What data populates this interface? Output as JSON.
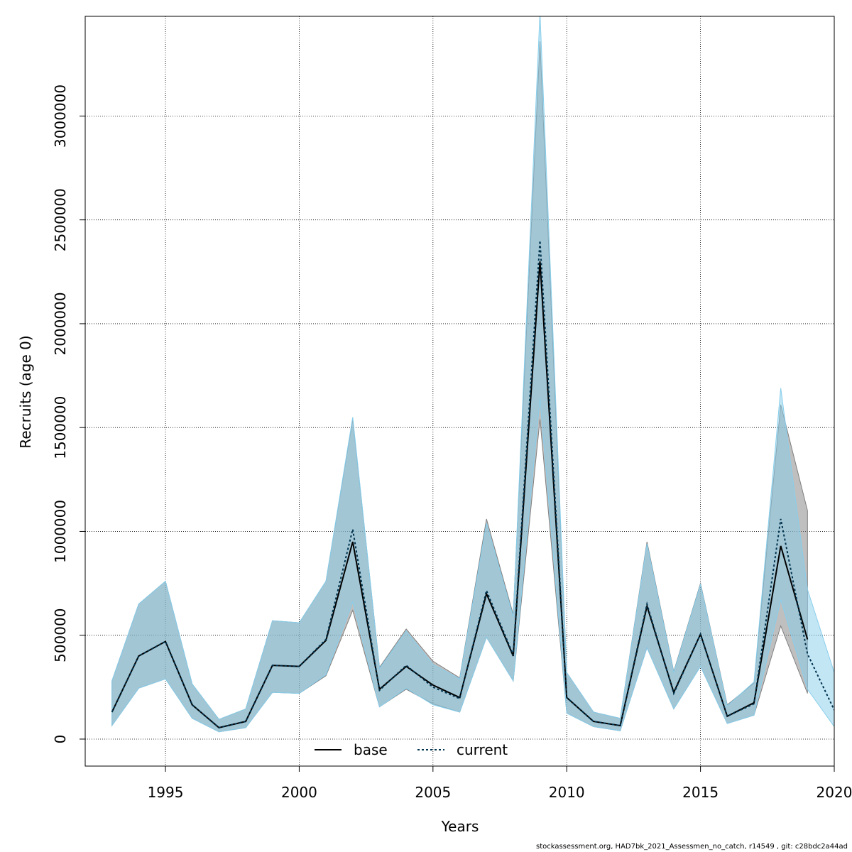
{
  "chart_data": {
    "type": "line",
    "xlabel": "Years",
    "ylabel": "Recruits (age 0)",
    "xlim": [
      1992,
      2020
    ],
    "ylim": [
      -130000,
      3480000
    ],
    "xticks": [
      1995,
      2000,
      2005,
      2010,
      2015,
      2020
    ],
    "yticks": [
      0,
      500000,
      1000000,
      1500000,
      2000000,
      2500000,
      3000000
    ],
    "grid": true,
    "legend_position": "bottom-center",
    "series": [
      {
        "name": "base",
        "color": "#000000",
        "band_color": "#808080",
        "x": [
          1993,
          1994,
          1995,
          1996,
          1997,
          1998,
          1999,
          2000,
          2001,
          2002,
          2003,
          2004,
          2005,
          2006,
          2007,
          2008,
          2009,
          2010,
          2011,
          2012,
          2013,
          2014,
          2015,
          2016,
          2017,
          2018,
          2019
        ],
        "values": [
          130000,
          400000,
          470000,
          165000,
          55000,
          85000,
          355000,
          350000,
          475000,
          950000,
          240000,
          350000,
          260000,
          200000,
          700000,
          400000,
          2300000,
          200000,
          85000,
          65000,
          640000,
          225000,
          505000,
          110000,
          175000,
          930000,
          480000
        ],
        "lower": [
          65000,
          245000,
          290000,
          100000,
          35000,
          55000,
          225000,
          220000,
          305000,
          620000,
          155000,
          240000,
          170000,
          130000,
          490000,
          280000,
          1540000,
          125000,
          60000,
          40000,
          440000,
          145000,
          350000,
          75000,
          115000,
          545000,
          220000
        ],
        "upper": [
          280000,
          650000,
          760000,
          265000,
          95000,
          145000,
          570000,
          560000,
          760000,
          1540000,
          345000,
          530000,
          375000,
          295000,
          1060000,
          600000,
          3360000,
          320000,
          130000,
          100000,
          950000,
          325000,
          750000,
          165000,
          270000,
          1610000,
          1100000
        ]
      },
      {
        "name": "current",
        "color": "#00334D",
        "band_color": "#87CEEB",
        "x": [
          1993,
          1994,
          1995,
          1996,
          1997,
          1998,
          1999,
          2000,
          2001,
          2002,
          2003,
          2004,
          2005,
          2006,
          2007,
          2008,
          2009,
          2010,
          2011,
          2012,
          2013,
          2014,
          2015,
          2016,
          2017,
          2018,
          2019,
          2020
        ],
        "values": [
          130000,
          400000,
          470000,
          165000,
          55000,
          85000,
          355000,
          350000,
          480000,
          1010000,
          235000,
          355000,
          250000,
          195000,
          715000,
          405000,
          2400000,
          200000,
          85000,
          65000,
          650000,
          220000,
          505000,
          110000,
          170000,
          1060000,
          410000,
          140000
        ],
        "lower": [
          65000,
          245000,
          290000,
          100000,
          35000,
          55000,
          225000,
          220000,
          310000,
          660000,
          155000,
          245000,
          165000,
          130000,
          490000,
          280000,
          1640000,
          125000,
          60000,
          40000,
          440000,
          145000,
          350000,
          75000,
          115000,
          670000,
          240000,
          60000
        ],
        "upper": [
          280000,
          650000,
          760000,
          265000,
          95000,
          145000,
          570000,
          560000,
          760000,
          1550000,
          340000,
          520000,
          360000,
          290000,
          1040000,
          590000,
          3500000,
          320000,
          130000,
          100000,
          940000,
          320000,
          745000,
          160000,
          275000,
          1690000,
          720000,
          320000
        ]
      }
    ]
  },
  "footer": "stockassessment.org, HAD7bk_2021_Assessmen_no_catch, r14549 , git: c28bdc2a44ad"
}
